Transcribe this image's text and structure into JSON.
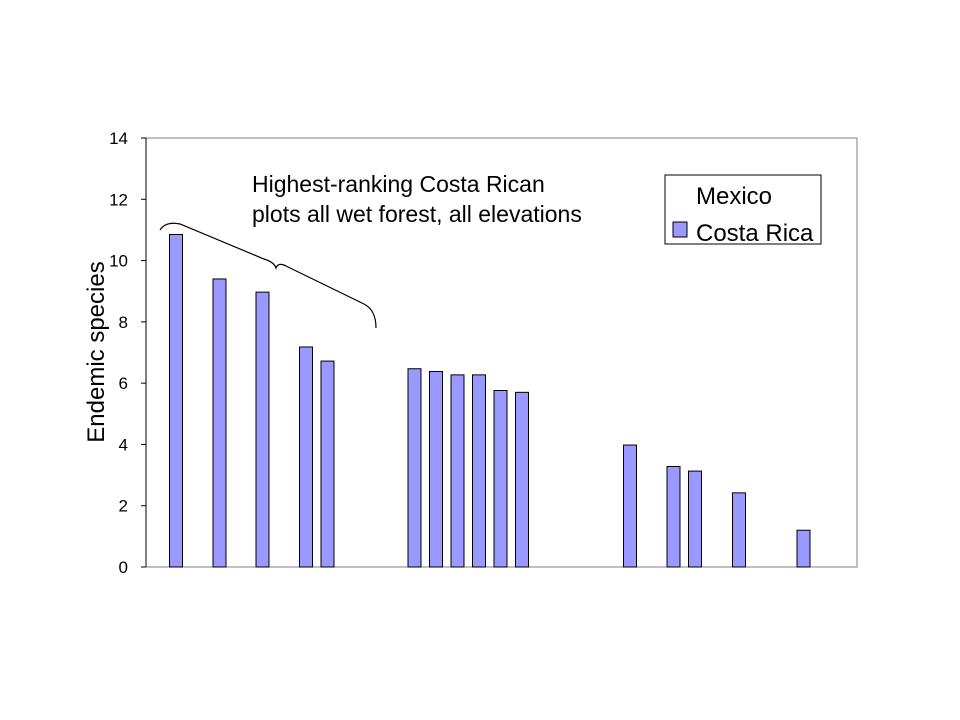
{
  "chart_data": {
    "type": "bar",
    "title": "",
    "xlabel": "",
    "ylabel": "Endemic species",
    "ylim": [
      0,
      14
    ],
    "yticks": [
      "0",
      "2",
      "4",
      "6",
      "8",
      "10",
      "12",
      "14"
    ],
    "grid": false,
    "legend": {
      "placement": "top-right",
      "entries": [
        "Mexico",
        "Costa Rica"
      ]
    },
    "annotation": {
      "line1": "Highest-ranking Costa Rican",
      "line2": "plots all wet forest, all elevations"
    },
    "series": [
      {
        "name": "Costa Rica",
        "color": "#9999ff",
        "values": [
          10.85,
          9.4,
          8.97,
          7.18,
          6.72,
          6.47,
          6.38,
          6.27,
          6.27,
          5.76,
          5.7,
          3.98,
          3.28,
          3.13,
          2.42,
          1.2
        ]
      }
    ],
    "colors": {
      "bar_fill": "#9999ff",
      "bar_stroke": "#000000",
      "plot_border": "#808080"
    }
  }
}
